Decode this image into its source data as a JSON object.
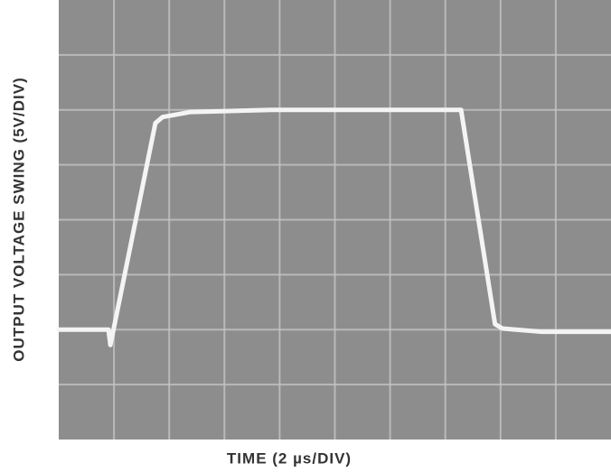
{
  "chart_data": {
    "type": "line",
    "x_label": "TIME (2 µs/DIV)",
    "y_label": "OUTPUT VOLTAGE SWING (5V/DIV)",
    "x": [
      0,
      1.8,
      1.87,
      3.5,
      3.76,
      4.75,
      7.7,
      14.57,
      15.8,
      16.07,
      17.5,
      20
    ],
    "values": [
      -10,
      -10,
      -11.4,
      8.8,
      9.35,
      9.8,
      10,
      10,
      -9.5,
      -9.9,
      -10.2,
      -10.2
    ],
    "color": "#f4f4f4",
    "xlim": [
      0,
      20
    ],
    "ylim": [
      -20,
      20
    ],
    "grid": true
  }
}
